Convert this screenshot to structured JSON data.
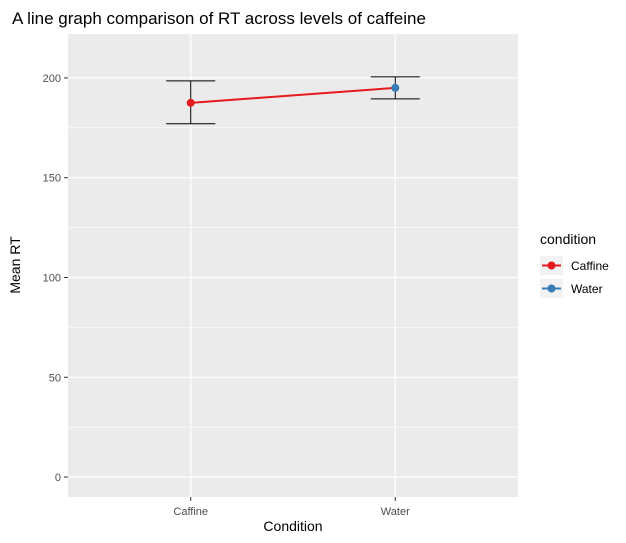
{
  "chart_data": {
    "type": "line",
    "title": "A line graph comparison of RT across levels of caffeine",
    "xlabel": "Condition",
    "ylabel": "Mean RT",
    "categories": [
      "Caffine",
      "Water"
    ],
    "y_ticks": [
      0,
      50,
      100,
      150,
      200
    ],
    "ylim": [
      -10,
      222
    ],
    "grid": true,
    "points": [
      {
        "condition": "Caffine",
        "mean": 187.5,
        "lower": 177,
        "upper": 198.5,
        "color": "#e41a1c"
      },
      {
        "condition": "Water",
        "mean": 195,
        "lower": 189.5,
        "upper": 200.5,
        "color": "#377eb8"
      }
    ],
    "line_color": "#e41a1c",
    "legend": {
      "title": "condition",
      "position": "right",
      "entries": [
        {
          "label": "Caffine",
          "color": "#e41a1c"
        },
        {
          "label": "Water",
          "color": "#377eb8"
        }
      ]
    },
    "panel_background": "#ebebeb",
    "gridline_color": "#ffffff"
  }
}
